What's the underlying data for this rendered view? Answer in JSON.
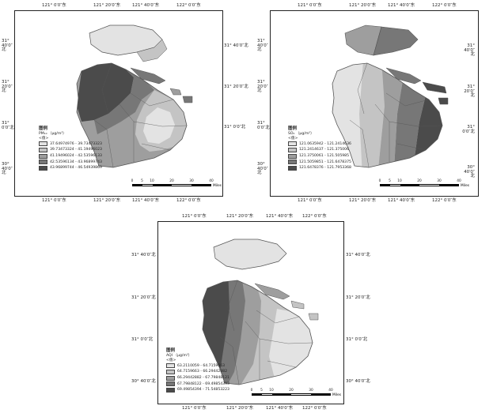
{
  "colors": {
    "class1": "#e3e3e3",
    "class2": "#c4c4c4",
    "class3": "#9e9e9e",
    "class4": "#777777",
    "class5": "#4b4b4b",
    "boundary": "#555555",
    "frame": "#222222"
  },
  "axis_labels": {
    "x": [
      "121° 0′0″东",
      "121° 20′0″东",
      "121° 40′0″东",
      "122° 0′0″东"
    ],
    "y": [
      "31° 40′0″北",
      "31° 20′0″北",
      "31° 0′0″北",
      "30° 40′0″北"
    ]
  },
  "scale": {
    "ticks": [
      "0",
      "5",
      "10",
      "20",
      "30",
      "40"
    ],
    "unit": "Miles"
  },
  "maps": [
    {
      "id": "pm10",
      "legend": {
        "title": "图例",
        "variable": "PM₁₀ （μg/m³）",
        "value_label": "<值>",
        "classes": [
          "37.64974976 - 39.73473323",
          "39.73473324 - 41.19496023",
          "41.19496024 - 42.53596133",
          "42.53596134 - 43.96899743",
          "43.96899744 - 46.54939869"
        ]
      }
    },
    {
      "id": "so2",
      "legend": {
        "title": "图例",
        "variable": "SO₂ （μg/m³）",
        "value_label": "<值>",
        "classes": [
          "121.0635942 - 121.2414636",
          "121.2414637 - 121.375006",
          "121.3750061 - 121.505985",
          "121.5059851 - 121.6478375",
          "121.6478376 - 121.7953368"
        ]
      }
    },
    {
      "id": "aqi",
      "legend": {
        "title": "图例",
        "variable": "AQI （μg/m³）",
        "value_label": "<值>",
        "classes": [
          "63.2110059 - 64.7159663",
          "64.7159663 - 66.29442882",
          "66.29442882 - 67.79848121",
          "67.79848122 - 69.49854393",
          "69.49854394 - 71.54853223"
        ]
      }
    }
  ]
}
